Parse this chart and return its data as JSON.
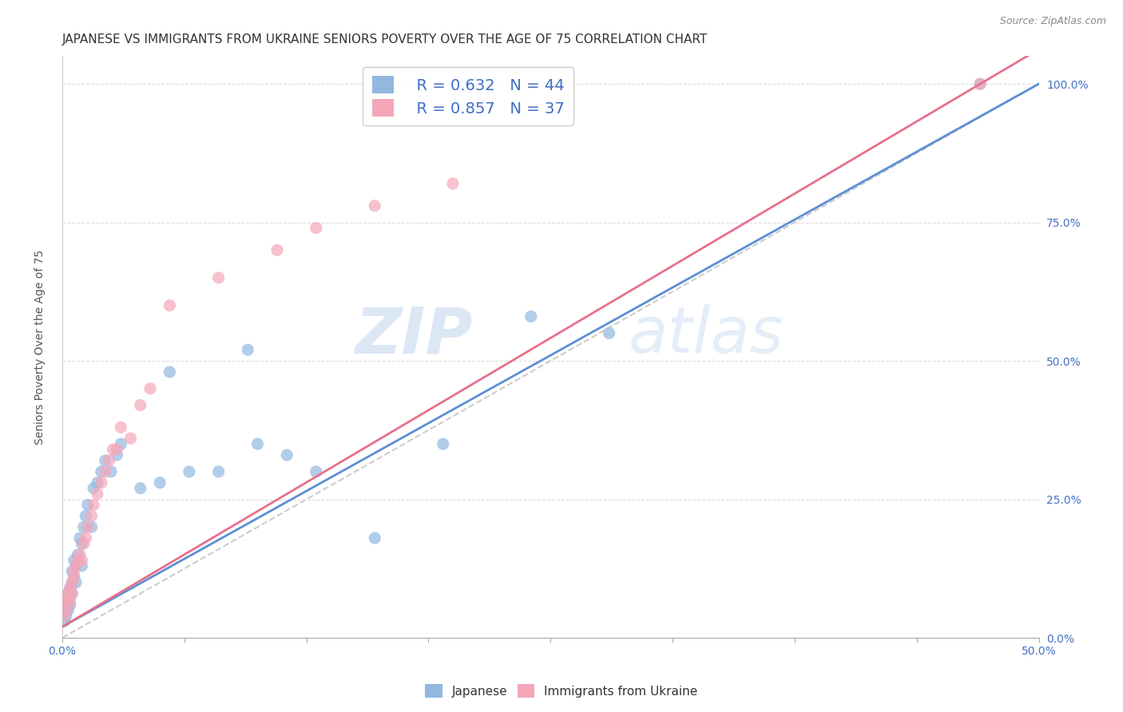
{
  "title": "JAPANESE VS IMMIGRANTS FROM UKRAINE SENIORS POVERTY OVER THE AGE OF 75 CORRELATION CHART",
  "source": "Source: ZipAtlas.com",
  "ylabel": "Seniors Poverty Over the Age of 75",
  "xlim": [
    0,
    0.5
  ],
  "ylim": [
    0,
    1.05
  ],
  "xtick_positions": [
    0.0,
    0.0625,
    0.125,
    0.1875,
    0.25,
    0.3125,
    0.375,
    0.4375,
    0.5
  ],
  "xtick_labels": [
    "0.0%",
    "",
    "",
    "",
    "",
    "",
    "",
    "",
    "50.0%"
  ],
  "ytick_labels_right": [
    "0.0%",
    "25.0%",
    "50.0%",
    "75.0%",
    "100.0%"
  ],
  "yticks": [
    0.0,
    0.25,
    0.5,
    0.75,
    1.0
  ],
  "blue_color": "#92b8e0",
  "pink_color": "#f4a7b9",
  "blue_line_color": "#5b8fd4",
  "pink_line_color": "#e8708a",
  "dashed_line_color": "#cccccc",
  "axis_color": "#4472c4",
  "legend_R1": "R = 0.632",
  "legend_N1": "N = 44",
  "legend_R2": "R = 0.857",
  "legend_N2": "N = 37",
  "watermark_zip": "ZIP",
  "watermark_atlas": "atlas",
  "title_fontsize": 11,
  "axis_label_fontsize": 10,
  "tick_fontsize": 10,
  "legend_fontsize": 14,
  "japanese_x": [
    0.001,
    0.002,
    0.002,
    0.003,
    0.003,
    0.003,
    0.004,
    0.004,
    0.005,
    0.005,
    0.005,
    0.006,
    0.006,
    0.007,
    0.007,
    0.008,
    0.009,
    0.01,
    0.01,
    0.011,
    0.012,
    0.013,
    0.015,
    0.016,
    0.018,
    0.02,
    0.022,
    0.025,
    0.028,
    0.03,
    0.04,
    0.05,
    0.055,
    0.065,
    0.08,
    0.095,
    0.1,
    0.115,
    0.13,
    0.16,
    0.195,
    0.24,
    0.28,
    0.47
  ],
  "japanese_y": [
    0.03,
    0.04,
    0.06,
    0.05,
    0.07,
    0.08,
    0.06,
    0.09,
    0.1,
    0.08,
    0.12,
    0.11,
    0.14,
    0.1,
    0.13,
    0.15,
    0.18,
    0.13,
    0.17,
    0.2,
    0.22,
    0.24,
    0.2,
    0.27,
    0.28,
    0.3,
    0.32,
    0.3,
    0.33,
    0.35,
    0.27,
    0.28,
    0.48,
    0.3,
    0.3,
    0.52,
    0.35,
    0.33,
    0.3,
    0.18,
    0.35,
    0.58,
    0.55,
    1.0
  ],
  "ukraine_x": [
    0.001,
    0.002,
    0.002,
    0.003,
    0.003,
    0.004,
    0.004,
    0.005,
    0.005,
    0.006,
    0.006,
    0.007,
    0.008,
    0.009,
    0.01,
    0.011,
    0.012,
    0.013,
    0.015,
    0.016,
    0.018,
    0.02,
    0.022,
    0.024,
    0.026,
    0.028,
    0.03,
    0.035,
    0.04,
    0.045,
    0.055,
    0.08,
    0.11,
    0.13,
    0.16,
    0.2,
    0.47
  ],
  "ukraine_y": [
    0.04,
    0.05,
    0.07,
    0.06,
    0.08,
    0.07,
    0.09,
    0.08,
    0.1,
    0.11,
    0.12,
    0.13,
    0.14,
    0.15,
    0.14,
    0.17,
    0.18,
    0.2,
    0.22,
    0.24,
    0.26,
    0.28,
    0.3,
    0.32,
    0.34,
    0.34,
    0.38,
    0.36,
    0.42,
    0.45,
    0.6,
    0.65,
    0.7,
    0.74,
    0.78,
    0.82,
    1.0
  ],
  "blue_line_x0": 0.0,
  "blue_line_y0": 0.02,
  "blue_line_x1": 0.5,
  "blue_line_y1": 1.0,
  "pink_line_x0": 0.0,
  "pink_line_y0": 0.02,
  "pink_line_x1": 0.47,
  "pink_line_y1": 1.0
}
